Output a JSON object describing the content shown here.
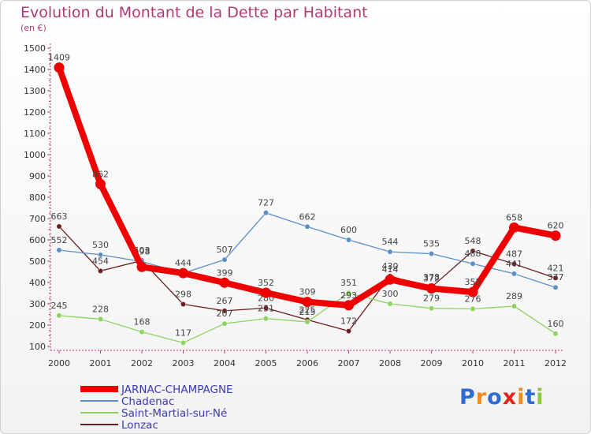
{
  "title": "Evolution du Montant de la Dette par Habitant",
  "subtitle": "(en €)",
  "logo": {
    "text": "Proxiti",
    "colors": [
      "#2f6bd0",
      "#f08a1c",
      "#2f6bd0",
      "#e1251b",
      "#f08a1c",
      "#2f6bd0",
      "#8dc63f"
    ]
  },
  "chart_data": {
    "type": "line",
    "categories": [
      "2000",
      "2001",
      "2002",
      "2003",
      "2004",
      "2005",
      "2006",
      "2007",
      "2008",
      "2009",
      "2010",
      "2011",
      "2012"
    ],
    "ylim": [
      100,
      1500
    ],
    "yticks": [
      100,
      200,
      300,
      400,
      500,
      600,
      700,
      800,
      900,
      1000,
      1100,
      1200,
      1300,
      1400,
      1500
    ],
    "grid": false,
    "legend_position": "bottom-left",
    "series": [
      {
        "name": "Lonzac",
        "color": "#6b1f1f",
        "lineWidth": 1.3,
        "marker": true,
        "values": [
          663,
          454,
          503,
          298,
          267,
          280,
          225,
          172,
          430,
          378,
          548,
          487,
          421
        ],
        "labels": [
          "663",
          "454",
          "503",
          "298",
          "267",
          "280",
          "225",
          "172",
          "430",
          "378",
          "548",
          "487",
          "421"
        ]
      },
      {
        "name": "Saint-Martial-sur-Né",
        "color": "#8dd35f",
        "lineWidth": 1.3,
        "marker": true,
        "values": [
          245,
          228,
          168,
          117,
          207,
          231,
          215,
          351,
          300,
          279,
          276,
          289,
          160
        ],
        "labels": [
          "245",
          "228",
          "168",
          "117",
          "207",
          "231",
          "215",
          "351",
          "300",
          "279",
          "276",
          "289",
          "160"
        ]
      },
      {
        "name": "Chadenac",
        "color": "#5b8fc7",
        "lineWidth": 1.3,
        "marker": true,
        "values": [
          552,
          530,
          498,
          444,
          507,
          727,
          662,
          600,
          544,
          535,
          488,
          441,
          377
        ],
        "labels": [
          "552",
          "530",
          "498",
          "444",
          "507",
          "727",
          "662",
          "600",
          "544",
          "535",
          "488",
          "441",
          "377"
        ]
      },
      {
        "name": "JARNAC-CHAMPAGNE",
        "color": "#ee0000",
        "lineWidth": 8,
        "marker": true,
        "values": [
          1409,
          862,
          473,
          444,
          399,
          352,
          309,
          293,
          414,
          372,
          355,
          658,
          620
        ],
        "labels": [
          "1409",
          "862",
          "",
          "",
          "399",
          "352",
          "309",
          "293",
          "414",
          "372",
          "355",
          "658",
          "620"
        ]
      }
    ],
    "legend": [
      "JARNAC-CHAMPAGNE",
      "Chadenac",
      "Saint-Martial-sur-Né",
      "Lonzac"
    ]
  }
}
